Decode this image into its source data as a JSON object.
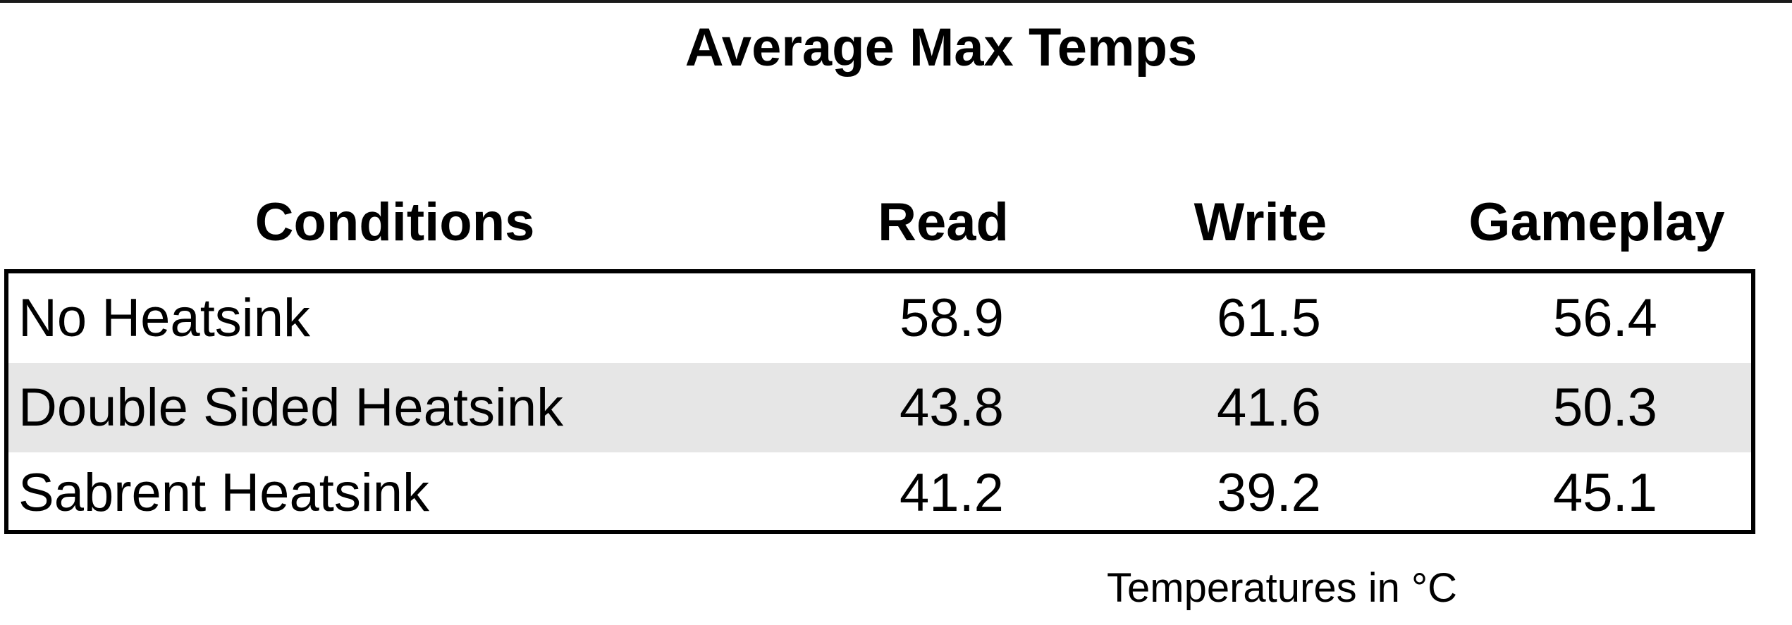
{
  "chart_data": {
    "type": "table",
    "title": "Average Max Temps",
    "columns": [
      "Conditions",
      "Read",
      "Write",
      "Gameplay"
    ],
    "rows": [
      {
        "condition": "No Heatsink",
        "read": "58.9",
        "write": "61.5",
        "gameplay": "56.4"
      },
      {
        "condition": "Double Sided Heatsink",
        "read": "43.8",
        "write": "41.6",
        "gameplay": "50.3"
      },
      {
        "condition": "Sabrent Heatsink",
        "read": "41.2",
        "write": "39.2",
        "gameplay": "45.1"
      }
    ],
    "note": "Temperatures in °C",
    "colors": {
      "text": "#000000",
      "border": "#000000",
      "shaded_row": "#e6e6e6",
      "background": "#ffffff"
    }
  }
}
